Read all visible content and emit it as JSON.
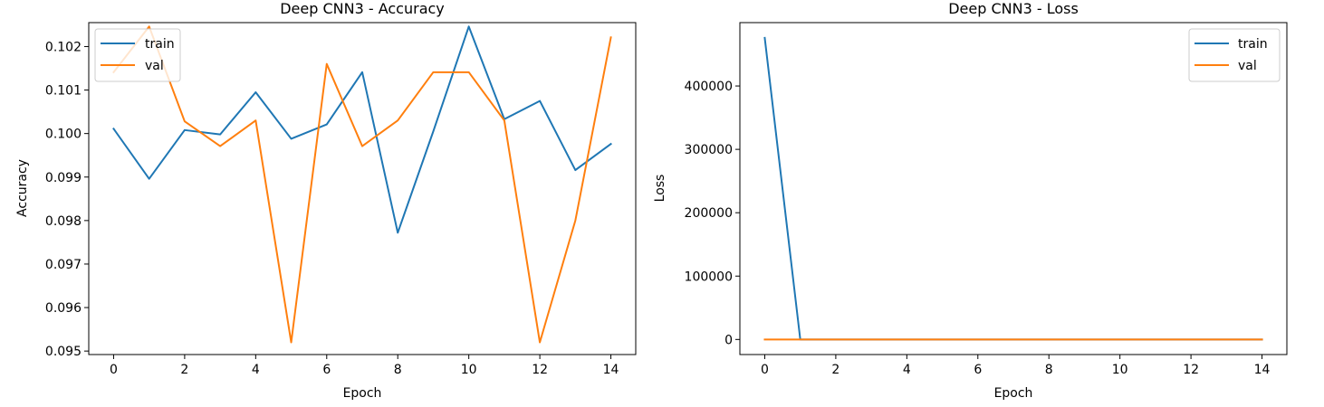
{
  "colors": {
    "train": "#1f77b4",
    "val": "#ff7f0e"
  },
  "chart_data": [
    {
      "type": "line",
      "title": "Deep CNN3 - Accuracy",
      "xlabel": "Epoch",
      "ylabel": "Accuracy",
      "xlim": [
        -0.7,
        14.7
      ],
      "ylim": [
        0.09492,
        0.10255
      ],
      "xticks": [
        0,
        2,
        4,
        6,
        8,
        10,
        12,
        14
      ],
      "yticks": [
        0.095,
        0.096,
        0.097,
        0.098,
        0.099,
        0.1,
        0.101,
        0.102
      ],
      "ytick_labels": [
        "0.095",
        "0.096",
        "0.097",
        "0.098",
        "0.099",
        "0.100",
        "0.101",
        "0.102"
      ],
      "legend_position": "top-left",
      "x": [
        0,
        1,
        2,
        3,
        4,
        5,
        6,
        7,
        8,
        9,
        10,
        11,
        12,
        13,
        14
      ],
      "series": [
        {
          "name": "train",
          "values": [
            0.10011,
            0.09896,
            0.10008,
            0.09998,
            0.10095,
            0.09988,
            0.10021,
            0.10141,
            0.09772,
            0.10005,
            0.10246,
            0.10033,
            0.10075,
            0.09916,
            0.09976
          ]
        },
        {
          "name": "val",
          "values": [
            0.10141,
            0.10246,
            0.10028,
            0.09971,
            0.1003,
            0.0952,
            0.1016,
            0.09971,
            0.1003,
            0.10141,
            0.10141,
            0.1003,
            0.0952,
            0.098,
            0.10221
          ]
        }
      ]
    },
    {
      "type": "line",
      "title": "Deep CNN3 - Loss",
      "xlabel": "Epoch",
      "ylabel": "Loss",
      "xlim": [
        -0.7,
        14.7
      ],
      "ylim": [
        -23800,
        500000
      ],
      "xticks": [
        0,
        2,
        4,
        6,
        8,
        10,
        12,
        14
      ],
      "yticks": [
        0,
        100000,
        200000,
        300000,
        400000
      ],
      "ytick_labels": [
        "0",
        "100000",
        "200000",
        "300000",
        "400000"
      ],
      "legend_position": "top-right",
      "x": [
        0,
        1,
        2,
        3,
        4,
        5,
        6,
        7,
        8,
        9,
        10,
        11,
        12,
        13,
        14
      ],
      "series": [
        {
          "name": "train",
          "values": [
            476000,
            2.3,
            2.3,
            2.3,
            2.3,
            2.3,
            2.3,
            2.3,
            2.3,
            2.3,
            2.3,
            2.3,
            2.3,
            2.3,
            2.3
          ]
        },
        {
          "name": "val",
          "values": [
            2.3,
            2.3,
            2.3,
            2.3,
            2.3,
            2.3,
            2.3,
            2.3,
            2.3,
            2.3,
            2.3,
            2.3,
            2.3,
            2.3,
            2.3
          ]
        }
      ]
    }
  ]
}
